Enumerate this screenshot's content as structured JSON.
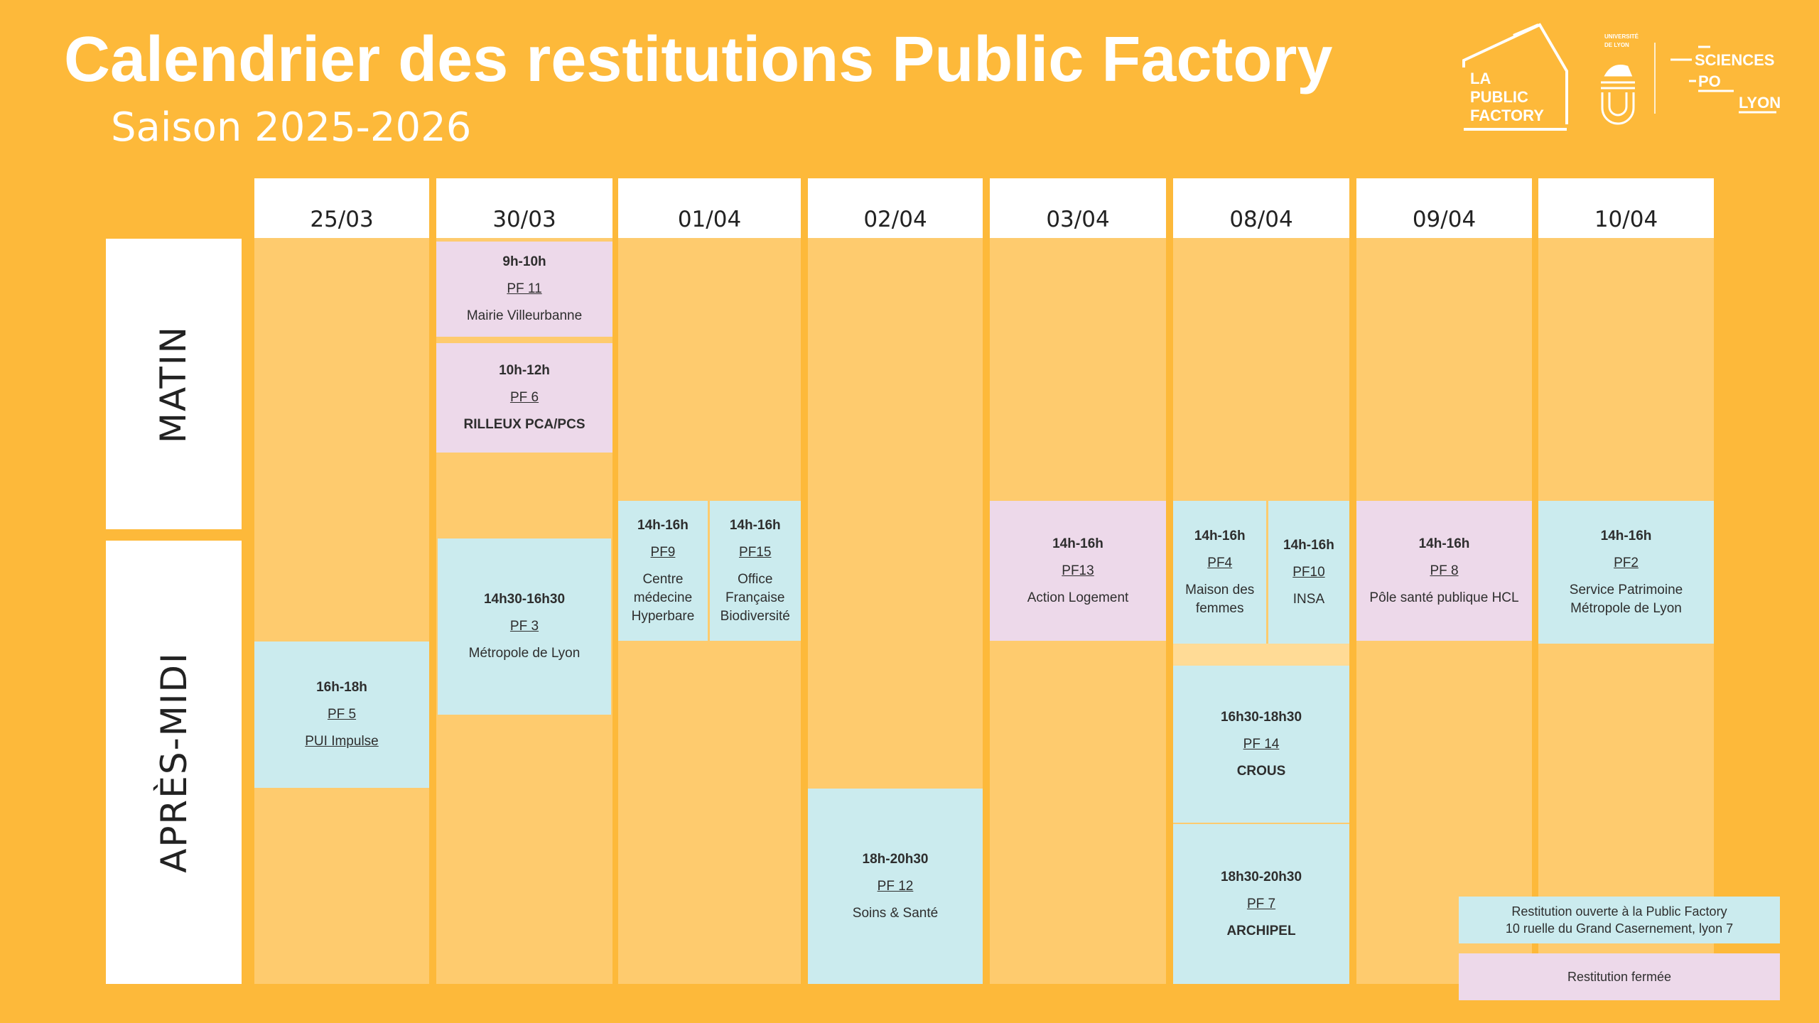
{
  "header": {
    "title": "Calendrier des restitutions Public Factory",
    "subtitle": "Saison 2025-2026"
  },
  "logos": {
    "public_factory": [
      "LA",
      "PUBLIC",
      "FACTORY"
    ],
    "universite": [
      "UNIVERSITÉ",
      "DE LYON"
    ],
    "sciences_po": [
      "SCIENCES",
      "PO",
      "LYON"
    ]
  },
  "rows": {
    "morning": "MATIN",
    "afternoon": "APRÈS-MIDI"
  },
  "days": [
    "25/03",
    "30/03",
    "01/04",
    "02/04",
    "03/04",
    "08/04",
    "09/04",
    "10/04"
  ],
  "events": [
    {
      "day": 0,
      "time": "16h-18h",
      "code": "PF 5",
      "name": "PUI Impulse",
      "type": "open"
    },
    {
      "day": 1,
      "time": "9h-10h",
      "code": "PF 11",
      "name": "Mairie Villeurbanne",
      "type": "closed"
    },
    {
      "day": 1,
      "time": "10h-12h",
      "code": "PF 6",
      "name": "RILLEUX PCA/PCS",
      "type": "closed"
    },
    {
      "day": 1,
      "time": "14h30-16h30",
      "code": "PF 3",
      "name": "Métropole de Lyon",
      "type": "open"
    },
    {
      "day": 2,
      "time": "14h-16h",
      "code": "PF9",
      "name": "Centre médecine Hyperbare",
      "type": "open"
    },
    {
      "day": 2,
      "time": "14h-16h",
      "code": "PF15",
      "name": "Office Française Biodiversité",
      "type": "open"
    },
    {
      "day": 3,
      "time": "18h-20h30",
      "code": "PF 12",
      "name": "Soins & Santé",
      "type": "open"
    },
    {
      "day": 4,
      "time": "14h-16h",
      "code": "PF13",
      "name": "Action Logement",
      "type": "closed"
    },
    {
      "day": 5,
      "time": "14h-16h",
      "code": "PF4",
      "name": "Maison des femmes",
      "type": "open"
    },
    {
      "day": 5,
      "time": "14h-16h",
      "code": "PF10",
      "name": "INSA",
      "type": "open"
    },
    {
      "day": 5,
      "time": "16h30-18h30",
      "code": "PF 14",
      "name": "CROUS",
      "type": "open"
    },
    {
      "day": 5,
      "time": "18h30-20h30",
      "code": "PF 7",
      "name": "ARCHIPEL",
      "type": "open"
    },
    {
      "day": 6,
      "time": "14h-16h",
      "code": "PF 8",
      "name": "Pôle santé publique HCL",
      "type": "closed"
    },
    {
      "day": 7,
      "time": "14h-16h",
      "code": "PF2",
      "name": "Service Patrimoine Métropole de Lyon",
      "type": "open"
    }
  ],
  "legend": {
    "open_line1": "Restitution ouverte à la Public Factory",
    "open_line2": "10 ruelle du Grand Casernement, lyon 7",
    "closed": "Restitution fermée"
  },
  "colors": {
    "background": "#FDB93A",
    "column": "#FECB6E",
    "open": "#CBEBEE",
    "closed": "#EDD9EA"
  }
}
